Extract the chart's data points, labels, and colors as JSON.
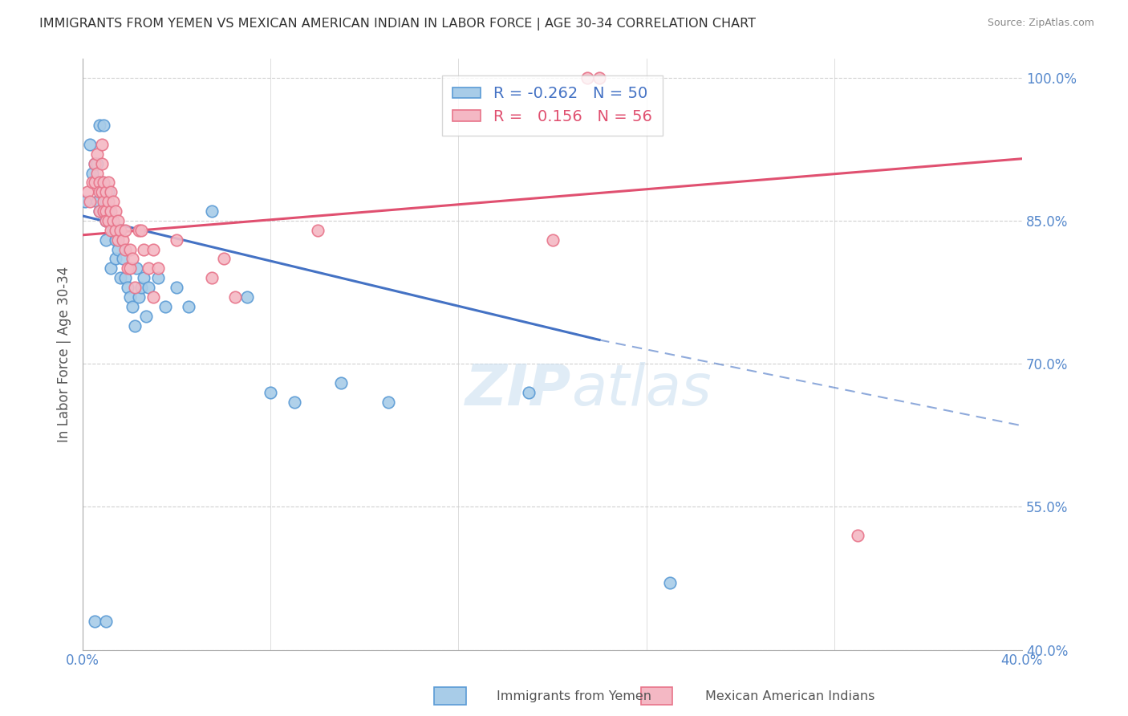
{
  "title": "IMMIGRANTS FROM YEMEN VS MEXICAN AMERICAN INDIAN IN LABOR FORCE | AGE 30-34 CORRELATION CHART",
  "source": "Source: ZipAtlas.com",
  "ylabel": "In Labor Force | Age 30-34",
  "yticks": [
    40,
    55,
    70,
    85,
    100
  ],
  "ytick_labels": [
    "40.0%",
    "55.0%",
    "70.0%",
    "85.0%",
    "100.0%"
  ],
  "xticks": [
    0,
    8,
    16,
    24,
    32,
    40
  ],
  "xtick_labels": [
    "0.0%",
    "",
    "",
    "",
    "",
    "40.0%"
  ],
  "blue_R": -0.262,
  "blue_N": 50,
  "pink_R": 0.156,
  "pink_N": 56,
  "blue_label": "Immigrants from Yemen",
  "pink_label": "Mexican American Indians",
  "blue_color": "#a8cce8",
  "pink_color": "#f4b8c4",
  "blue_edge_color": "#5b9bd5",
  "pink_edge_color": "#e8748a",
  "blue_trend_color": "#4472c4",
  "pink_trend_color": "#e05070",
  "axis_color": "#5588cc",
  "grid_color": "#d0d0d0",
  "title_color": "#333333",
  "blue_scatter": [
    [
      0.1,
      87
    ],
    [
      0.3,
      93
    ],
    [
      0.4,
      90
    ],
    [
      0.5,
      91
    ],
    [
      0.6,
      91
    ],
    [
      0.6,
      87
    ],
    [
      0.7,
      86
    ],
    [
      0.7,
      95
    ],
    [
      0.8,
      88
    ],
    [
      0.8,
      89
    ],
    [
      0.9,
      86
    ],
    [
      0.9,
      95
    ],
    [
      1.0,
      87
    ],
    [
      1.0,
      85
    ],
    [
      1.0,
      83
    ],
    [
      1.1,
      88
    ],
    [
      1.1,
      86
    ],
    [
      1.2,
      85
    ],
    [
      1.2,
      80
    ],
    [
      1.3,
      84
    ],
    [
      1.4,
      83
    ],
    [
      1.4,
      81
    ],
    [
      1.5,
      82
    ],
    [
      1.6,
      79
    ],
    [
      1.7,
      81
    ],
    [
      1.8,
      79
    ],
    [
      1.9,
      78
    ],
    [
      2.0,
      77
    ],
    [
      2.1,
      76
    ],
    [
      2.2,
      74
    ],
    [
      2.3,
      80
    ],
    [
      2.4,
      77
    ],
    [
      2.5,
      78
    ],
    [
      2.6,
      79
    ],
    [
      2.7,
      75
    ],
    [
      2.8,
      78
    ],
    [
      3.2,
      79
    ],
    [
      3.5,
      76
    ],
    [
      4.0,
      78
    ],
    [
      4.5,
      76
    ],
    [
      5.5,
      86
    ],
    [
      7.0,
      77
    ],
    [
      8.0,
      67
    ],
    [
      9.0,
      66
    ],
    [
      11.0,
      68
    ],
    [
      13.0,
      66
    ],
    [
      19.0,
      67
    ],
    [
      0.5,
      43
    ],
    [
      1.0,
      43
    ],
    [
      25.0,
      47
    ]
  ],
  "pink_scatter": [
    [
      0.2,
      88
    ],
    [
      0.3,
      87
    ],
    [
      0.4,
      89
    ],
    [
      0.5,
      91
    ],
    [
      0.5,
      89
    ],
    [
      0.6,
      92
    ],
    [
      0.6,
      90
    ],
    [
      0.7,
      89
    ],
    [
      0.7,
      88
    ],
    [
      0.7,
      86
    ],
    [
      0.8,
      93
    ],
    [
      0.8,
      91
    ],
    [
      0.8,
      88
    ],
    [
      0.9,
      89
    ],
    [
      0.9,
      87
    ],
    [
      0.9,
      86
    ],
    [
      1.0,
      88
    ],
    [
      1.0,
      86
    ],
    [
      1.0,
      85
    ],
    [
      1.1,
      89
    ],
    [
      1.1,
      87
    ],
    [
      1.1,
      85
    ],
    [
      1.2,
      88
    ],
    [
      1.2,
      86
    ],
    [
      1.2,
      84
    ],
    [
      1.3,
      87
    ],
    [
      1.3,
      85
    ],
    [
      1.4,
      86
    ],
    [
      1.4,
      84
    ],
    [
      1.5,
      85
    ],
    [
      1.5,
      83
    ],
    [
      1.6,
      84
    ],
    [
      1.7,
      83
    ],
    [
      1.8,
      82
    ],
    [
      1.8,
      84
    ],
    [
      1.9,
      80
    ],
    [
      2.0,
      82
    ],
    [
      2.0,
      80
    ],
    [
      2.1,
      81
    ],
    [
      2.2,
      78
    ],
    [
      2.4,
      84
    ],
    [
      2.5,
      84
    ],
    [
      2.6,
      82
    ],
    [
      2.8,
      80
    ],
    [
      3.0,
      77
    ],
    [
      3.0,
      82
    ],
    [
      3.2,
      80
    ],
    [
      4.0,
      83
    ],
    [
      5.5,
      79
    ],
    [
      6.0,
      81
    ],
    [
      6.5,
      77
    ],
    [
      10.0,
      84
    ],
    [
      20.0,
      83
    ],
    [
      21.5,
      100
    ],
    [
      22.0,
      100
    ],
    [
      33.0,
      52
    ]
  ],
  "blue_trend_x": [
    0,
    22,
    40
  ],
  "blue_trend_y": [
    85.5,
    72.5,
    63.5
  ],
  "blue_solid_end_x": 22,
  "pink_trend_x": [
    0,
    40
  ],
  "pink_trend_y": [
    83.5,
    91.5
  ],
  "xmin": 0,
  "xmax": 40,
  "ymin": 40,
  "ymax": 102
}
